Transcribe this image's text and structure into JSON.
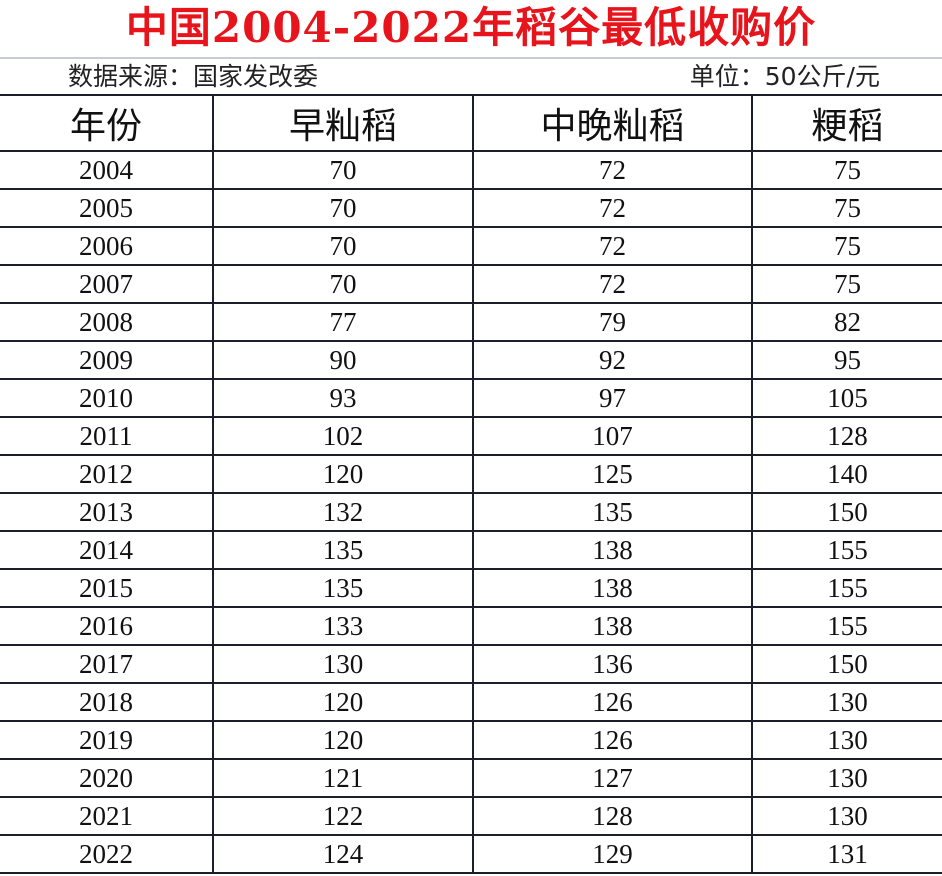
{
  "title": "中国2004-2022年稻谷最低收购价",
  "source": "数据来源：国家发改委",
  "unit": "单位：50公斤/元",
  "table": {
    "headers": [
      "年份",
      "早籼稻",
      "中晚籼稻",
      "粳稻"
    ],
    "rows": [
      [
        "2004",
        "70",
        "72",
        "75"
      ],
      [
        "2005",
        "70",
        "72",
        "75"
      ],
      [
        "2006",
        "70",
        "72",
        "75"
      ],
      [
        "2007",
        "70",
        "72",
        "75"
      ],
      [
        "2008",
        "77",
        "79",
        "82"
      ],
      [
        "2009",
        "90",
        "92",
        "95"
      ],
      [
        "2010",
        "93",
        "97",
        "105"
      ],
      [
        "2011",
        "102",
        "107",
        "128"
      ],
      [
        "2012",
        "120",
        "125",
        "140"
      ],
      [
        "2013",
        "132",
        "135",
        "150"
      ],
      [
        "2014",
        "135",
        "138",
        "155"
      ],
      [
        "2015",
        "135",
        "138",
        "155"
      ],
      [
        "2016",
        "133",
        "138",
        "155"
      ],
      [
        "2017",
        "130",
        "136",
        "150"
      ],
      [
        "2018",
        "120",
        "126",
        "130"
      ],
      [
        "2019",
        "120",
        "126",
        "130"
      ],
      [
        "2020",
        "121",
        "127",
        "130"
      ],
      [
        "2021",
        "122",
        "128",
        "130"
      ],
      [
        "2022",
        "124",
        "129",
        "131"
      ]
    ]
  },
  "colors": {
    "title": "#e8141c",
    "grid": "#1a1f2b"
  }
}
